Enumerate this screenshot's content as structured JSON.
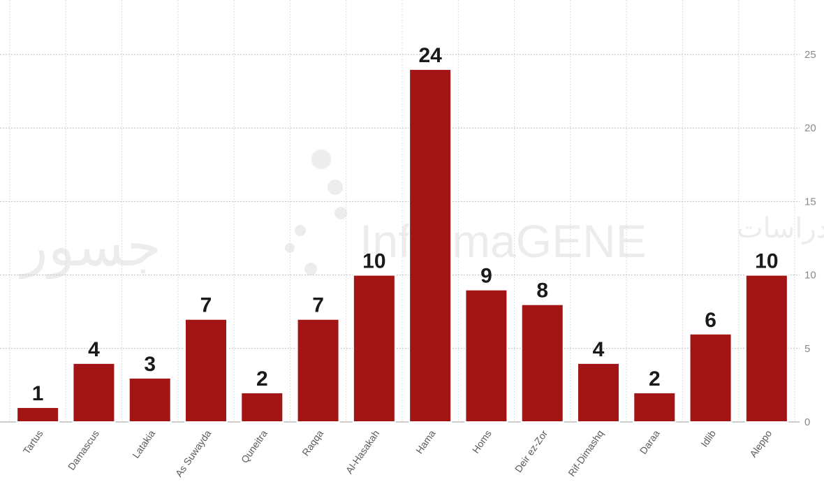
{
  "watermark": {
    "brand": "InformaGENE",
    "left_logo_text": "جسور",
    "right_logo_text": "دراسات"
  },
  "chart_data": {
    "type": "bar",
    "title": "",
    "xlabel": "",
    "ylabel": "",
    "categories": [
      "Tartus",
      "Damascus",
      "Latakia",
      "As Suwayda",
      "Quneitra",
      "Raqqa",
      "Al-Hasakah",
      "Hama",
      "Homs",
      "Deir ez-Zor",
      "Rif-Dimashq",
      "Daraa",
      "Idlib",
      "Aleppo"
    ],
    "values": [
      1,
      4,
      3,
      7,
      2,
      7,
      10,
      24,
      9,
      8,
      4,
      2,
      6,
      10
    ],
    "data_labels": [
      "1",
      "4",
      "3",
      "7",
      "2",
      "7",
      "10",
      "24",
      "9",
      "8",
      "4",
      "2",
      "6",
      "10"
    ],
    "ylim": [
      0,
      25
    ],
    "yticks": [
      "0",
      "5",
      "10",
      "15",
      "20",
      "25"
    ],
    "y_axis_position": "right",
    "grid": true,
    "bar_color": "#a31515"
  }
}
